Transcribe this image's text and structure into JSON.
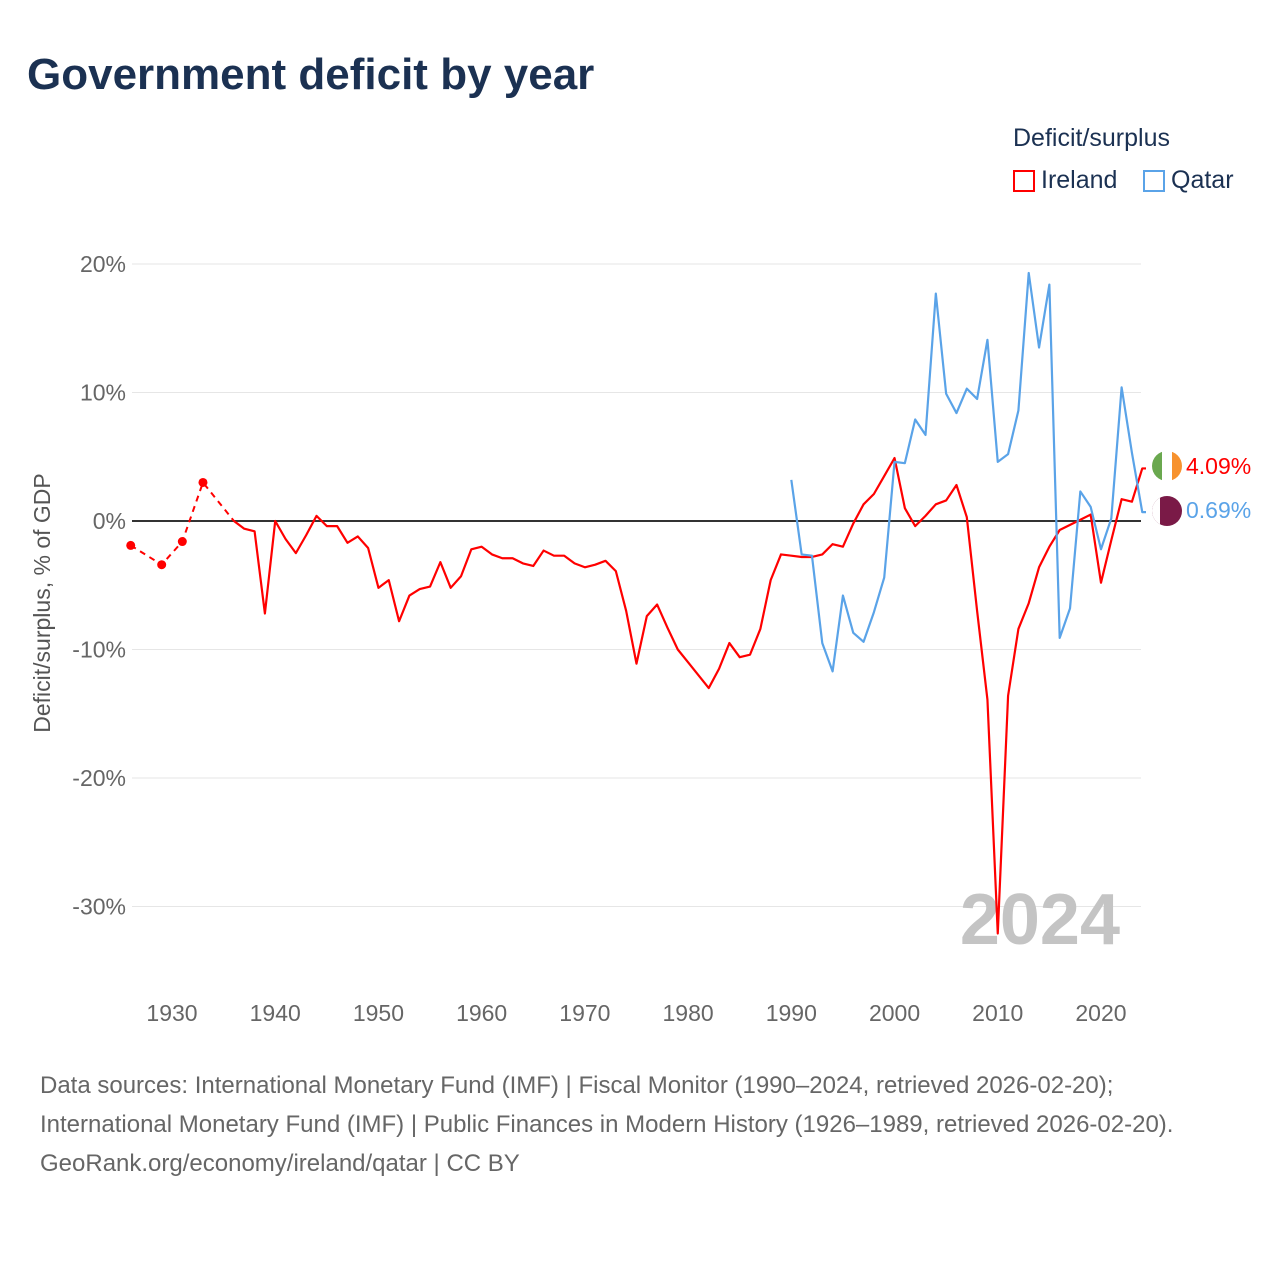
{
  "title": "Government deficit by year",
  "legend": {
    "title": "Deficit/surplus",
    "items": [
      {
        "label": "Ireland",
        "color": "#ff0000"
      },
      {
        "label": "Qatar",
        "color": "#5aa3e8"
      }
    ]
  },
  "watermark_year": "2024",
  "end_labels": {
    "ireland": "4.09%",
    "qatar": "0.69%"
  },
  "sources": {
    "line1": "Data sources: International Monetary Fund (IMF) | Fiscal Monitor (1990–2024, retrieved 2026-02-20); International Monetary Fund (IMF) | Public Finances in Modern History (1926–1989, retrieved 2026-02-20).",
    "line2": "GeoRank.org/economy/ireland/qatar | CC BY"
  },
  "chart_data": {
    "type": "line",
    "title": "Government deficit by year",
    "ylabel": "Deficit/surplus, % of GDP",
    "xlabel": "",
    "ylim": [
      -35,
      22
    ],
    "xlim": [
      1926,
      2024
    ],
    "yticks": [
      20,
      10,
      0,
      -10,
      -20,
      -30
    ],
    "ytick_labels": [
      "20%",
      "10%",
      "0%",
      "-10%",
      "-20%",
      "-30%"
    ],
    "xticks": [
      1930,
      1940,
      1950,
      1960,
      1970,
      1980,
      1990,
      2000,
      2010,
      2020
    ],
    "xtick_labels": [
      "1930",
      "1940",
      "1950",
      "1960",
      "1970",
      "1980",
      "1990",
      "2000",
      "2010",
      "2020"
    ],
    "series": [
      {
        "name": "Ireland",
        "color": "#ff0000",
        "sparse_points": [
          [
            1926,
            -1.9
          ],
          [
            1929,
            -3.4
          ],
          [
            1931,
            -1.6
          ],
          [
            1933,
            3.0
          ]
        ],
        "points": [
          [
            1936,
            0
          ],
          [
            1937,
            -0.6
          ],
          [
            1938,
            -0.8
          ],
          [
            1939,
            -7.2
          ],
          [
            1940,
            0
          ],
          [
            1941,
            -1.4
          ],
          [
            1942,
            -2.5
          ],
          [
            1943,
            -1.1
          ],
          [
            1944,
            0.4
          ],
          [
            1945,
            -0.4
          ],
          [
            1946,
            -0.4
          ],
          [
            1947,
            -1.7
          ],
          [
            1948,
            -1.2
          ],
          [
            1949,
            -2.1
          ],
          [
            1950,
            -5.2
          ],
          [
            1951,
            -4.6
          ],
          [
            1952,
            -7.8
          ],
          [
            1953,
            -5.8
          ],
          [
            1954,
            -5.3
          ],
          [
            1955,
            -5.1
          ],
          [
            1956,
            -3.2
          ],
          [
            1957,
            -5.2
          ],
          [
            1958,
            -4.3
          ],
          [
            1959,
            -2.2
          ],
          [
            1960,
            -2.0
          ],
          [
            1961,
            -2.6
          ],
          [
            1962,
            -2.9
          ],
          [
            1963,
            -2.9
          ],
          [
            1964,
            -3.3
          ],
          [
            1965,
            -3.5
          ],
          [
            1966,
            -2.3
          ],
          [
            1967,
            -2.7
          ],
          [
            1968,
            -2.7
          ],
          [
            1969,
            -3.3
          ],
          [
            1970,
            -3.6
          ],
          [
            1971,
            -3.4
          ],
          [
            1972,
            -3.1
          ],
          [
            1973,
            -3.9
          ],
          [
            1974,
            -7.0
          ],
          [
            1975,
            -11.1
          ],
          [
            1976,
            -7.4
          ],
          [
            1977,
            -6.5
          ],
          [
            1978,
            -8.3
          ],
          [
            1979,
            -10.0
          ],
          [
            1980,
            -11.0
          ],
          [
            1981,
            -12.0
          ],
          [
            1982,
            -13.0
          ],
          [
            1983,
            -11.5
          ],
          [
            1984,
            -9.5
          ],
          [
            1985,
            -10.6
          ],
          [
            1986,
            -10.4
          ],
          [
            1987,
            -8.4
          ],
          [
            1988,
            -4.6
          ],
          [
            1989,
            -2.6
          ],
          [
            1990,
            -2.7
          ],
          [
            1991,
            -2.8
          ],
          [
            1992,
            -2.8
          ],
          [
            1993,
            -2.6
          ],
          [
            1994,
            -1.8
          ],
          [
            1995,
            -2.0
          ],
          [
            1996,
            -0.2
          ],
          [
            1997,
            1.3
          ],
          [
            1998,
            2.1
          ],
          [
            1999,
            3.5
          ],
          [
            2000,
            4.9
          ],
          [
            2001,
            1.0
          ],
          [
            2002,
            -0.4
          ],
          [
            2003,
            0.4
          ],
          [
            2004,
            1.3
          ],
          [
            2005,
            1.6
          ],
          [
            2006,
            2.8
          ],
          [
            2007,
            0.3
          ],
          [
            2008,
            -7.0
          ],
          [
            2009,
            -13.9
          ],
          [
            2010,
            -32.1
          ],
          [
            2011,
            -13.6
          ],
          [
            2012,
            -8.4
          ],
          [
            2013,
            -6.4
          ],
          [
            2014,
            -3.6
          ],
          [
            2015,
            -2.0
          ],
          [
            2016,
            -0.7
          ],
          [
            2017,
            -0.3
          ],
          [
            2018,
            0.1
          ],
          [
            2019,
            0.5
          ],
          [
            2020,
            -4.8
          ],
          [
            2021,
            -1.5
          ],
          [
            2022,
            1.7
          ],
          [
            2023,
            1.5
          ],
          [
            2024,
            4.09
          ]
        ]
      },
      {
        "name": "Qatar",
        "color": "#5aa3e8",
        "points": [
          [
            1990,
            3.2
          ],
          [
            1991,
            -2.6
          ],
          [
            1992,
            -2.7
          ],
          [
            1993,
            -9.5
          ],
          [
            1994,
            -11.7
          ],
          [
            1995,
            -5.8
          ],
          [
            1996,
            -8.7
          ],
          [
            1997,
            -9.4
          ],
          [
            1998,
            -7.1
          ],
          [
            1999,
            -4.4
          ],
          [
            2000,
            4.6
          ],
          [
            2001,
            4.5
          ],
          [
            2002,
            7.9
          ],
          [
            2003,
            6.7
          ],
          [
            2004,
            17.7
          ],
          [
            2005,
            9.9
          ],
          [
            2006,
            8.4
          ],
          [
            2007,
            10.3
          ],
          [
            2008,
            9.5
          ],
          [
            2009,
            14.1
          ],
          [
            2010,
            4.6
          ],
          [
            2011,
            5.2
          ],
          [
            2012,
            8.6
          ],
          [
            2013,
            19.3
          ],
          [
            2014,
            13.5
          ],
          [
            2015,
            18.4
          ],
          [
            2016,
            -9.1
          ],
          [
            2017,
            -6.8
          ],
          [
            2018,
            2.3
          ],
          [
            2019,
            1.1
          ],
          [
            2020,
            -2.2
          ],
          [
            2021,
            0.2
          ],
          [
            2022,
            10.4
          ],
          [
            2023,
            5.3
          ],
          [
            2024,
            0.69
          ]
        ]
      }
    ]
  }
}
